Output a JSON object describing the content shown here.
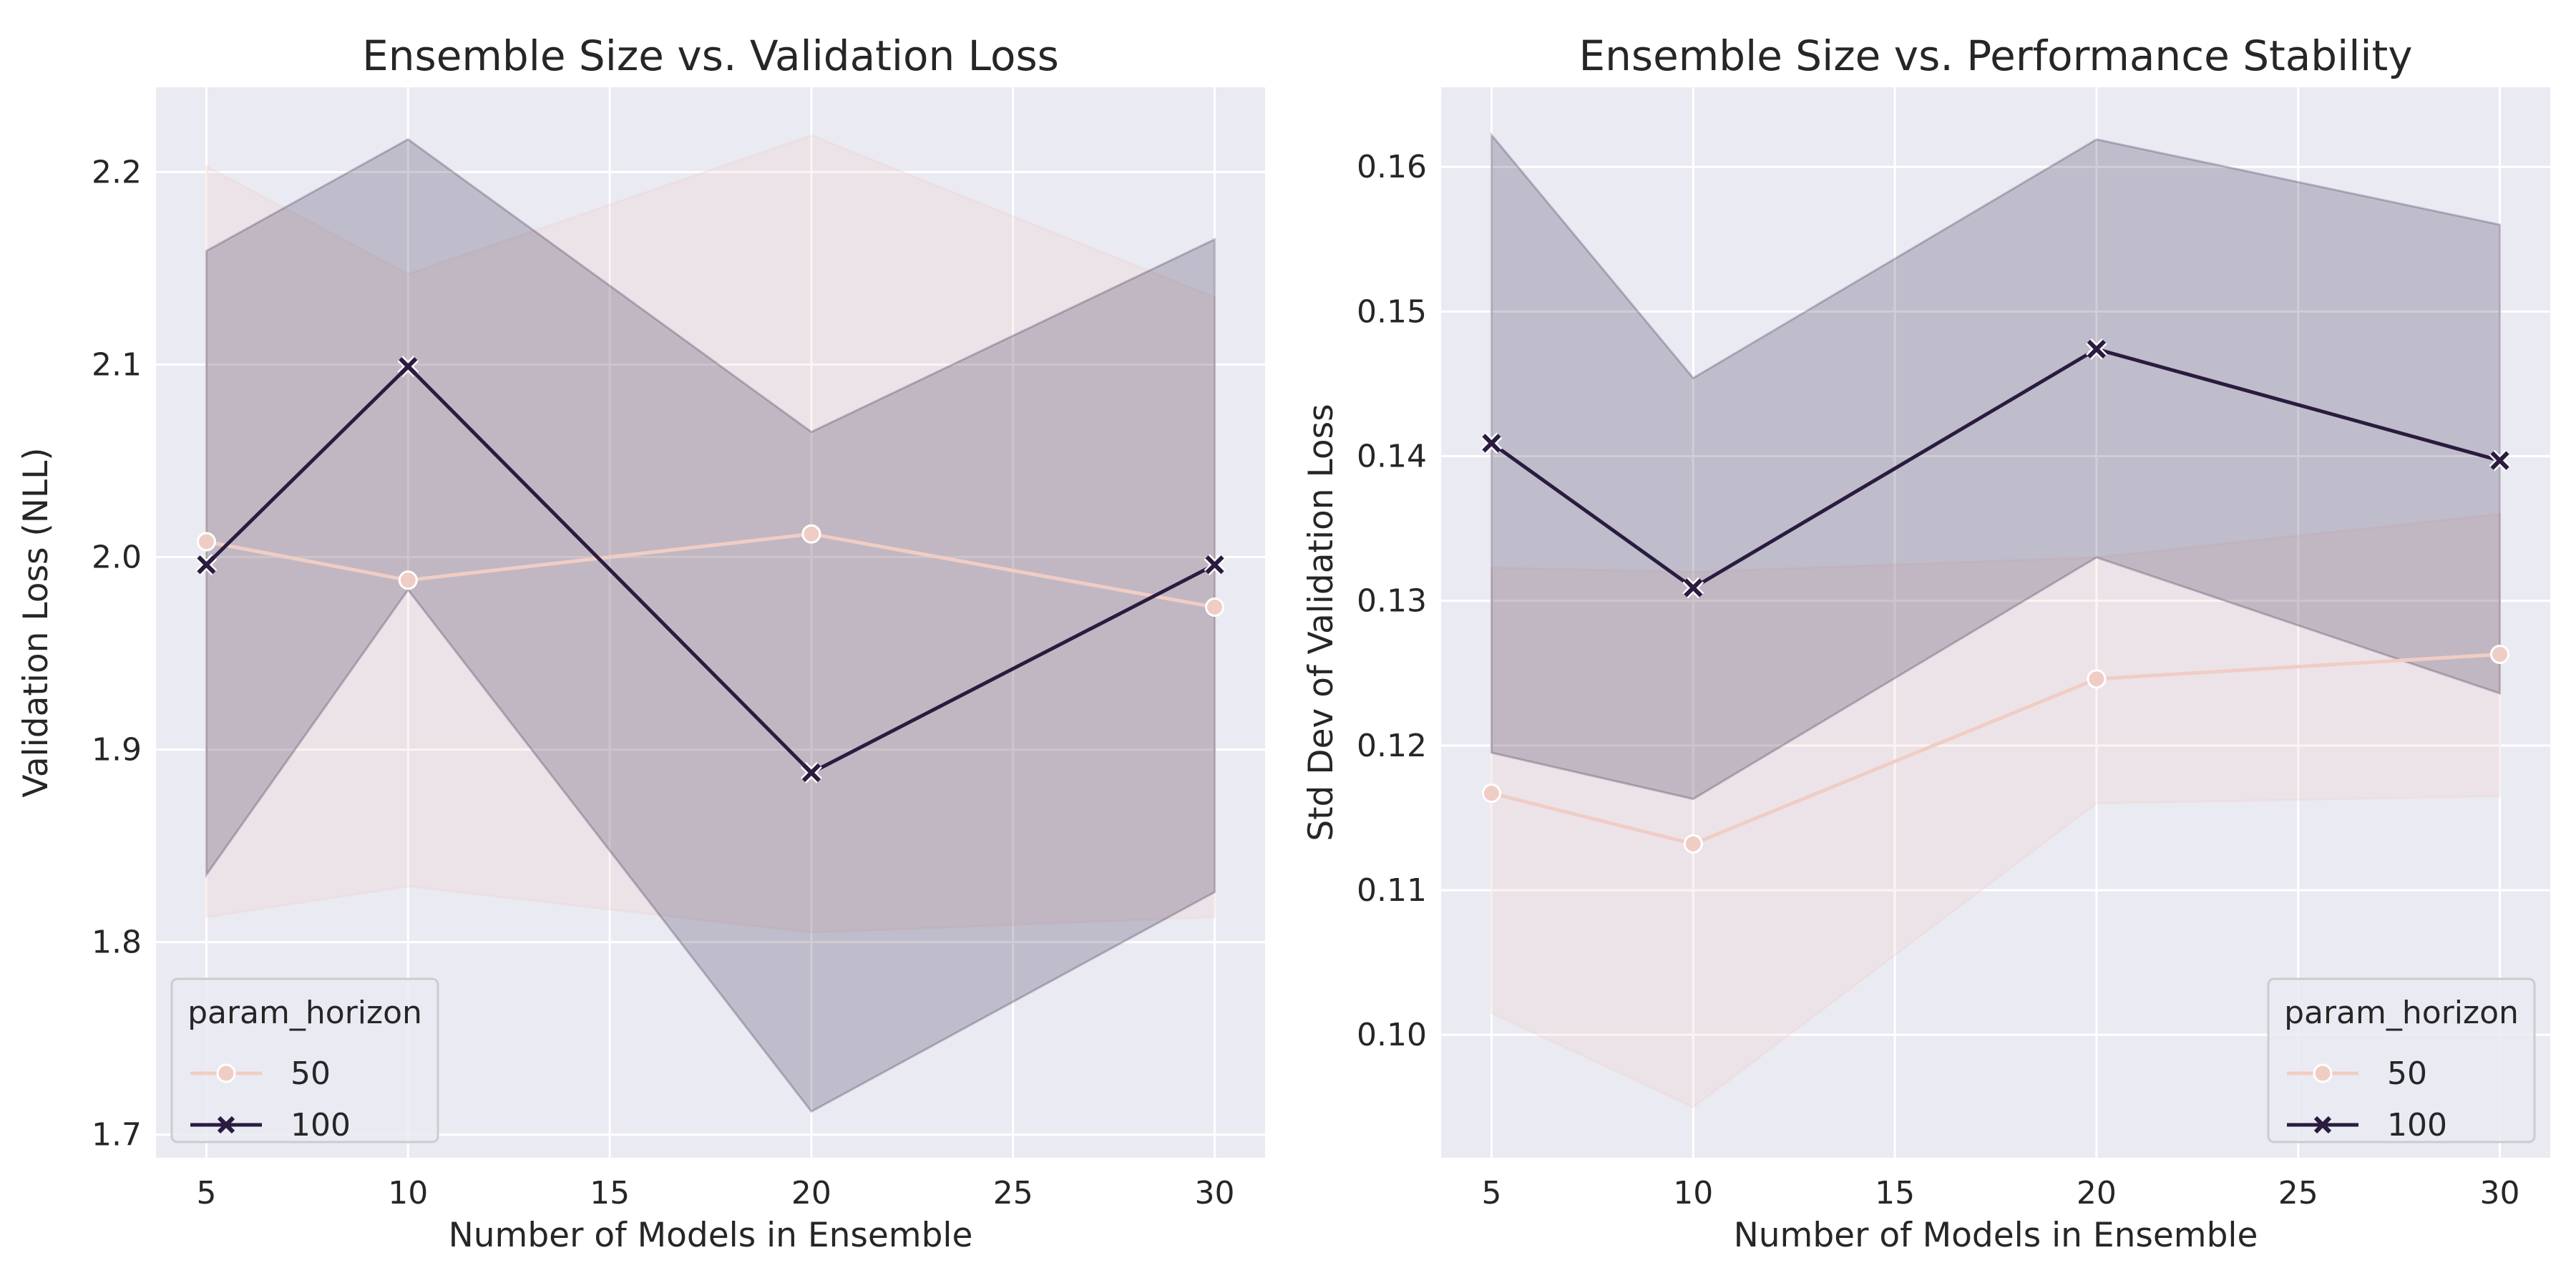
{
  "legend_title": "param_horizon",
  "colors": {
    "panel_bg": "#eaeaf2",
    "grid": "#ffffff",
    "series_50": "#f0cdc4",
    "series_100": "#2a1b3f"
  },
  "chart_data": [
    {
      "type": "line",
      "title": "Ensemble Size vs. Validation Loss",
      "xlabel": "Number of Models in Ensemble",
      "ylabel": "Validation Loss (NLL)",
      "x": [
        5,
        10,
        20,
        30
      ],
      "xlim": [
        3.75,
        31.25
      ],
      "ylim": [
        1.688,
        2.244
      ],
      "xticks": [
        5,
        10,
        15,
        20,
        25,
        30
      ],
      "yticks": [
        1.7,
        1.8,
        1.9,
        2.0,
        2.1,
        2.2
      ],
      "ytick_labels": [
        "1.7",
        "1.8",
        "1.9",
        "2.0",
        "2.1",
        "2.2"
      ],
      "grid": true,
      "legend_position": "lower-left",
      "series": [
        {
          "name": "50",
          "marker": "circle",
          "values": [
            2.008,
            1.988,
            2.012,
            1.974
          ],
          "ci_low": [
            1.813,
            1.829,
            1.805,
            1.813
          ],
          "ci_high": [
            2.203,
            2.147,
            2.219,
            2.135
          ]
        },
        {
          "name": "100",
          "marker": "x",
          "values": [
            1.996,
            2.099,
            1.888,
            1.996
          ],
          "ci_low": [
            1.835,
            1.983,
            1.712,
            1.826
          ],
          "ci_high": [
            2.159,
            2.217,
            2.065,
            2.165
          ]
        }
      ]
    },
    {
      "type": "line",
      "title": "Ensemble Size vs. Performance Stability",
      "xlabel": "Number of Models in Ensemble",
      "ylabel": "Std Dev of Validation Loss",
      "x": [
        5,
        10,
        20,
        30
      ],
      "xlim": [
        3.75,
        31.25
      ],
      "ylim": [
        0.0915,
        0.1655
      ],
      "xticks": [
        5,
        10,
        15,
        20,
        25,
        30
      ],
      "yticks": [
        0.1,
        0.11,
        0.12,
        0.13,
        0.14,
        0.15,
        0.16
      ],
      "ytick_labels": [
        "0.10",
        "0.11",
        "0.12",
        "0.13",
        "0.14",
        "0.15",
        "0.16"
      ],
      "grid": true,
      "legend_position": "lower-right",
      "series": [
        {
          "name": "50",
          "marker": "circle",
          "values": [
            0.1167,
            0.1132,
            0.1246,
            0.1263
          ],
          "ci_low": [
            0.1015,
            0.095,
            0.116,
            0.1165
          ],
          "ci_high": [
            0.1323,
            0.132,
            0.133,
            0.136
          ]
        },
        {
          "name": "100",
          "marker": "x",
          "values": [
            0.1409,
            0.1309,
            0.1474,
            0.1397
          ],
          "ci_low": [
            0.1195,
            0.1163,
            0.133,
            0.1236
          ],
          "ci_high": [
            0.1622,
            0.1454,
            0.1619,
            0.156
          ]
        }
      ]
    }
  ]
}
